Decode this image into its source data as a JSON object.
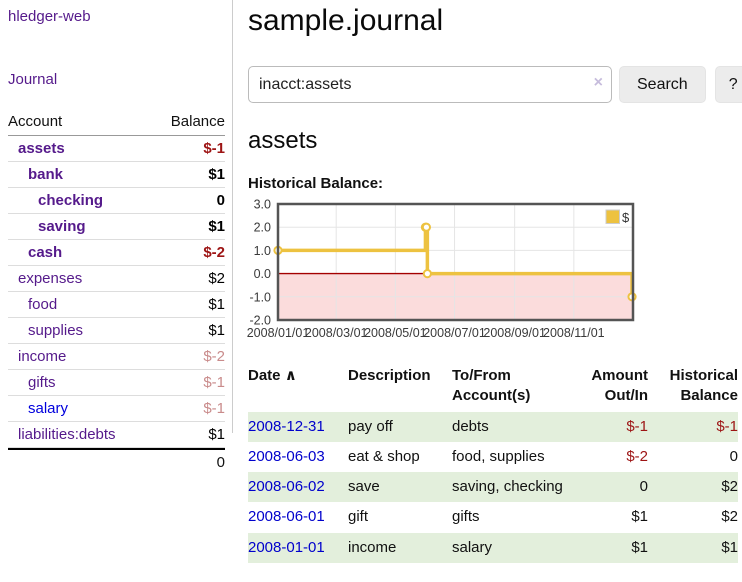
{
  "sidebar": {
    "brand": "hledger-web",
    "nav_journal": "Journal",
    "columns": {
      "account": "Account",
      "balance": "Balance"
    },
    "accounts": [
      {
        "name": "assets",
        "indent": 1,
        "balance": "$-1",
        "bold": true,
        "negative": "strong"
      },
      {
        "name": "bank",
        "indent": 2,
        "balance": "$1",
        "bold": true,
        "negative": null
      },
      {
        "name": "checking",
        "indent": 3,
        "balance": "0",
        "bold": true,
        "negative": null
      },
      {
        "name": "saving",
        "indent": 3,
        "balance": "$1",
        "bold": true,
        "negative": null
      },
      {
        "name": "cash",
        "indent": 2,
        "balance": "$-2",
        "bold": true,
        "negative": "strong"
      },
      {
        "name": "expenses",
        "indent": 1,
        "balance": "$2",
        "bold": false,
        "negative": null
      },
      {
        "name": "food",
        "indent": 2,
        "balance": "$1",
        "bold": false,
        "negative": null
      },
      {
        "name": "supplies",
        "indent": 2,
        "balance": "$1",
        "bold": false,
        "negative": null
      },
      {
        "name": "income",
        "indent": 1,
        "balance": "$-2",
        "bold": false,
        "negative": "dim"
      },
      {
        "name": "gifts",
        "indent": 2,
        "balance": "$-1",
        "bold": false,
        "negative": "dim"
      },
      {
        "name": "salary",
        "indent": 2,
        "balance": "$-1",
        "bold": false,
        "negative": "dim",
        "link": "blue"
      },
      {
        "name": "liabilities:debts",
        "indent": 1,
        "balance": "$1",
        "bold": false,
        "negative": null
      }
    ],
    "total": "0"
  },
  "header": {
    "title": "sample.journal"
  },
  "search": {
    "value": "inacct:assets",
    "clear_icon": "×",
    "button_label": "Search",
    "help_label": "?"
  },
  "main": {
    "account_title": "assets",
    "chart_label": "Historical Balance:"
  },
  "chart_data": {
    "type": "line",
    "title": "Historical Balance",
    "series": [
      {
        "name": "$",
        "color": "#edc240",
        "points": [
          [
            "2008-01-01",
            1
          ],
          [
            "2008-06-01",
            2
          ],
          [
            "2008-06-02",
            2
          ],
          [
            "2008-06-03",
            0
          ],
          [
            "2008-12-31",
            -1
          ]
        ]
      }
    ],
    "x_range": [
      "2008-01-01",
      "2009-01-01"
    ],
    "x_ticks": [
      "2008/01/01",
      "2008/03/01",
      "2008/05/01",
      "2008/07/01",
      "2008/09/01",
      "2008/11/01"
    ],
    "y_ticks": [
      3.0,
      2.0,
      1.0,
      0.0,
      -1.0,
      -2.0
    ],
    "ylim": [
      -2,
      3
    ],
    "grid": true,
    "legend": {
      "label": "$",
      "position": "top-right"
    },
    "negative_region_color": "#fbdcdc",
    "zero_line_color": "#a40000",
    "grid_color": "#e5e5e5",
    "border_color": "#545454"
  },
  "register": {
    "columns": {
      "date": "Date",
      "sort_icon": "∧",
      "description": "Description",
      "accounts": "To/From Account(s)",
      "amount": "Amount Out/In",
      "balance": "Historical Balance"
    },
    "rows": [
      {
        "date": "2008-12-31",
        "description": "pay off",
        "accounts": "debts",
        "amount": "$-1",
        "amount_negative": true,
        "balance": "$-1",
        "balance_negative": true
      },
      {
        "date": "2008-06-03",
        "description": "eat & shop",
        "accounts": "food, supplies",
        "amount": "$-2",
        "amount_negative": true,
        "balance": "0",
        "balance_negative": false
      },
      {
        "date": "2008-06-02",
        "description": "save",
        "accounts": "saving, checking",
        "amount": "0",
        "amount_negative": false,
        "balance": "$2",
        "balance_negative": false
      },
      {
        "date": "2008-06-01",
        "description": "gift",
        "accounts": "gifts",
        "amount": "$1",
        "amount_negative": false,
        "balance": "$2",
        "balance_negative": false
      },
      {
        "date": "2008-01-01",
        "description": "income",
        "accounts": "salary",
        "amount": "$1",
        "amount_negative": false,
        "balance": "$1",
        "balance_negative": false
      }
    ]
  },
  "colors": {
    "link_purple": "#551a8b",
    "link_blue": "#0000dd",
    "negative_strong": "#9d1414",
    "negative_dim": "#c98b8b",
    "row_stripe_green": "#e3efdc",
    "series_yellow": "#edc240"
  }
}
